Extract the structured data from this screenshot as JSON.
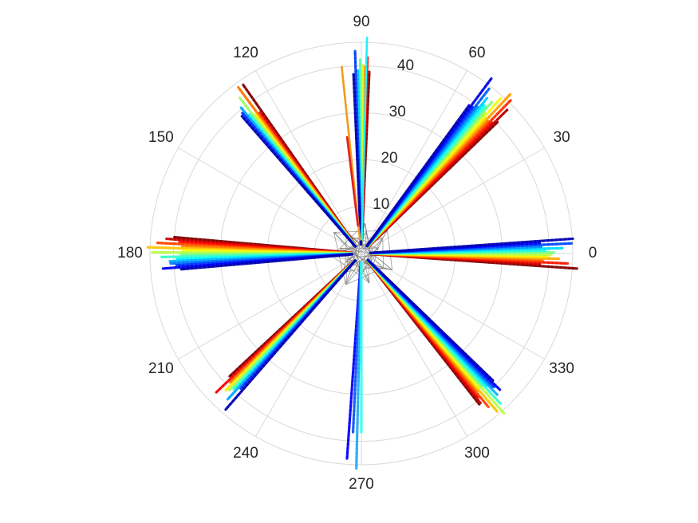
{
  "chart_data": {
    "type": "scatter",
    "coordinate_system": "polar",
    "title": "",
    "xlabel": "",
    "ylabel": "",
    "r_lim": [
      0,
      45
    ],
    "r_ticks": [
      10,
      20,
      30,
      40
    ],
    "r_tick_labels": [
      "10",
      "20",
      "30",
      "40"
    ],
    "theta_ticks_deg": [
      0,
      30,
      60,
      90,
      120,
      150,
      180,
      210,
      240,
      270,
      300,
      330
    ],
    "theta_tick_labels": [
      "0",
      "30",
      "60",
      "90",
      "120",
      "150",
      "180",
      "210",
      "240",
      "270",
      "300",
      "330"
    ],
    "theta_gridline_spacing_deg": 30,
    "grid": true,
    "legend": "none",
    "colormap": "jet",
    "gridline_color": "#d9d9d9",
    "center_mesh_color": "#808080",
    "series": [
      {
        "theta_deg": 0,
        "angle_spread_deg": 8,
        "r_min": 2,
        "r_max": 46,
        "color_from": "#0000ff",
        "color_to": "#ff0000",
        "count": 14
      },
      {
        "theta_deg": 49,
        "angle_spread_deg": 10,
        "r_min": 2,
        "r_max": 47,
        "color_from": "#0000ff",
        "color_to": "#b30000",
        "count": 18
      },
      {
        "theta_deg": 90,
        "angle_spread_deg": 5,
        "r_min": 2,
        "r_max": 46,
        "color_from": "#0000aa",
        "color_to": "#ff2200",
        "count": 8
      },
      {
        "theta_deg": 128,
        "angle_spread_deg": 6,
        "r_min": 2,
        "r_max": 45,
        "color_from": "#0000cc",
        "color_to": "#ee1111",
        "count": 9
      },
      {
        "theta_deg": 180,
        "angle_spread_deg": 10,
        "r_min": 2,
        "r_max": 46,
        "color_from": "#000099",
        "color_to": "#b30000",
        "count": 16
      },
      {
        "theta_deg": 226,
        "angle_spread_deg": 6,
        "r_min": 2,
        "r_max": 46,
        "color_from": "#000099",
        "color_to": "#cc0000",
        "count": 9
      },
      {
        "theta_deg": 268,
        "angle_spread_deg": 4,
        "r_min": 2,
        "r_max": 46,
        "color_from": "#0000ff",
        "color_to": "#33ffee",
        "count": 4
      },
      {
        "theta_deg": 312,
        "angle_spread_deg": 8,
        "r_min": 2,
        "r_max": 46,
        "color_from": "#0000cc",
        "color_to": "#b30000",
        "count": 16
      }
    ]
  }
}
